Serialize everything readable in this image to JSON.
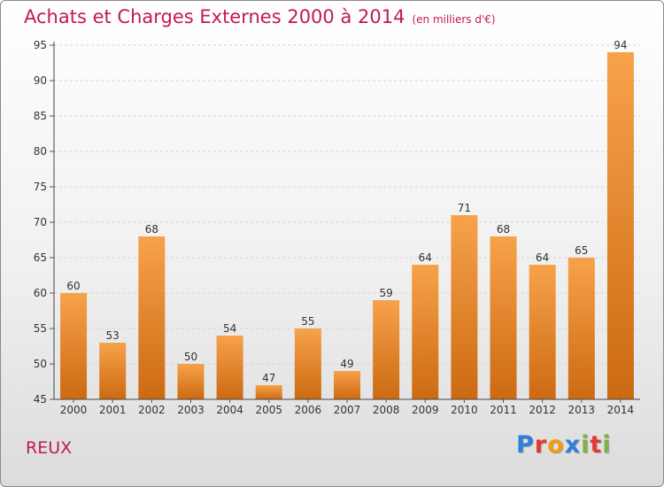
{
  "title": "Achats et Charges Externes 2000 à 2014",
  "unit": "(en milliers d'€)",
  "commune": "REUX",
  "logo": {
    "text": "Proxiti",
    "colors": [
      "#2e7fd8",
      "#e53935",
      "#f39c12",
      "#2e7fd8",
      "#7cb342",
      "#e53935",
      "#7cb342"
    ]
  },
  "colors": {
    "bar_top": "#f7a24a",
    "bar_bottom": "#cc6a12",
    "title": "#c2185b"
  },
  "chart_data": {
    "type": "bar",
    "categories": [
      "2000",
      "2001",
      "2002",
      "2003",
      "2004",
      "2005",
      "2006",
      "2007",
      "2008",
      "2009",
      "2010",
      "2011",
      "2012",
      "2013",
      "2014"
    ],
    "values": [
      60,
      53,
      68,
      50,
      54,
      47,
      55,
      49,
      59,
      64,
      71,
      68,
      64,
      65,
      94
    ],
    "ylim": [
      45,
      95
    ],
    "yticks": [
      45,
      50,
      55,
      60,
      65,
      70,
      75,
      80,
      85,
      90,
      95
    ],
    "grid": true
  }
}
